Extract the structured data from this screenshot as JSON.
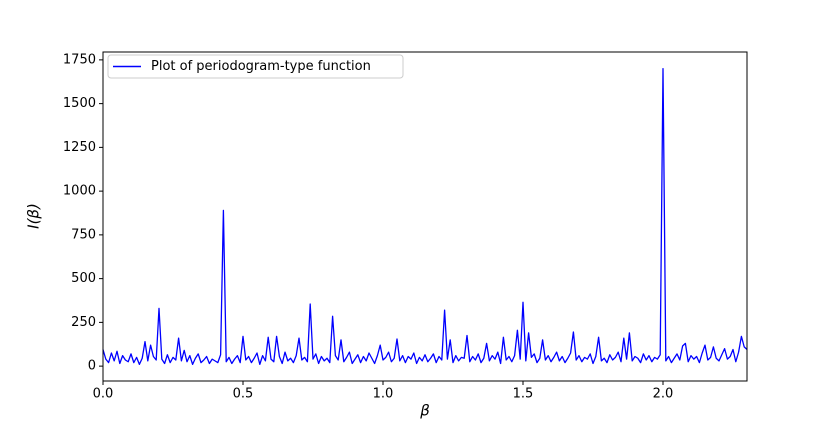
{
  "chart_data": {
    "type": "line",
    "x_label": "β",
    "y_label": "I(β)",
    "legend": "upper left",
    "grid": false,
    "xlim": [
      0,
      2.3
    ],
    "ylim": [
      -85,
      1795
    ],
    "xticks": [
      {
        "value": 0,
        "label": "0.0"
      },
      0.5,
      {
        "value": 1,
        "label": "1.0"
      },
      1.5,
      {
        "value": 2,
        "label": "2.0"
      }
    ],
    "yticks": [
      0,
      250,
      500,
      750,
      1000,
      1250,
      1500,
      1750
    ],
    "x": [
      0,
      0.01,
      0.02,
      0.03,
      0.04,
      0.05,
      0.06,
      0.07,
      0.08,
      0.09,
      0.1,
      0.11,
      0.12,
      0.13,
      0.14,
      0.15,
      0.16,
      0.17,
      0.18,
      0.19,
      0.2,
      0.21,
      0.22,
      0.23,
      0.24,
      0.25,
      0.26,
      0.27,
      0.28,
      0.29,
      0.3,
      0.31,
      0.32,
      0.33,
      0.34,
      0.35,
      0.36,
      0.37,
      0.38,
      0.39,
      0.4,
      0.41,
      0.42,
      0.43,
      0.44,
      0.45,
      0.46,
      0.47,
      0.48,
      0.49,
      0.5,
      0.51,
      0.52,
      0.53,
      0.54,
      0.55,
      0.56,
      0.57,
      0.58,
      0.59,
      0.6,
      0.61,
      0.62,
      0.63,
      0.64,
      0.65,
      0.66,
      0.67,
      0.68,
      0.69,
      0.7,
      0.71,
      0.72,
      0.73,
      0.74,
      0.75,
      0.76,
      0.77,
      0.78,
      0.79,
      0.8,
      0.81,
      0.82,
      0.83,
      0.84,
      0.85,
      0.86,
      0.87,
      0.88,
      0.89,
      0.9,
      0.91,
      0.92,
      0.93,
      0.94,
      0.95,
      0.96,
      0.97,
      0.98,
      0.99,
      1,
      1.01,
      1.02,
      1.03,
      1.04,
      1.05,
      1.06,
      1.07,
      1.08,
      1.09,
      1.1,
      1.11,
      1.12,
      1.13,
      1.14,
      1.15,
      1.16,
      1.17,
      1.18,
      1.19,
      1.2,
      1.21,
      1.22,
      1.23,
      1.24,
      1.25,
      1.26,
      1.27,
      1.28,
      1.29,
      1.3,
      1.31,
      1.32,
      1.33,
      1.34,
      1.35,
      1.36,
      1.37,
      1.38,
      1.39,
      1.4,
      1.41,
      1.42,
      1.43,
      1.44,
      1.45,
      1.46,
      1.47,
      1.48,
      1.49,
      1.5,
      1.51,
      1.52,
      1.53,
      1.54,
      1.55,
      1.56,
      1.57,
      1.58,
      1.59,
      1.6,
      1.61,
      1.62,
      1.63,
      1.64,
      1.65,
      1.66,
      1.67,
      1.68,
      1.69,
      1.7,
      1.71,
      1.72,
      1.73,
      1.74,
      1.75,
      1.76,
      1.77,
      1.78,
      1.79,
      1.8,
      1.81,
      1.82,
      1.83,
      1.84,
      1.85,
      1.86,
      1.87,
      1.88,
      1.89,
      1.9,
      1.91,
      1.92,
      1.93,
      1.94,
      1.95,
      1.96,
      1.97,
      1.98,
      1.99,
      2,
      2.01,
      2.02,
      2.03,
      2.04,
      2.05,
      2.06,
      2.07,
      2.08,
      2.09,
      2.1,
      2.11,
      2.12,
      2.13,
      2.14,
      2.15,
      2.16,
      2.17,
      2.18,
      2.19,
      2.2,
      2.21,
      2.22,
      2.23,
      2.24,
      2.25,
      2.26,
      2.27,
      2.28,
      2.29,
      2.3
    ],
    "series": [
      {
        "name": "Plot of periodogram-type function",
        "color": "#0000ff",
        "values": [
          95,
          40,
          20,
          75,
          30,
          85,
          15,
          60,
          35,
          25,
          70,
          20,
          50,
          10,
          45,
          140,
          30,
          120,
          55,
          35,
          330,
          40,
          15,
          65,
          20,
          50,
          35,
          160,
          30,
          90,
          25,
          60,
          10,
          45,
          70,
          20,
          35,
          55,
          15,
          40,
          30,
          20,
          65,
          890,
          25,
          50,
          15,
          40,
          60,
          20,
          170,
          35,
          55,
          20,
          45,
          75,
          10,
          60,
          30,
          165,
          40,
          25,
          170,
          55,
          15,
          80,
          30,
          45,
          20,
          60,
          160,
          35,
          50,
          25,
          355,
          40,
          70,
          15,
          55,
          30,
          45,
          20,
          285,
          60,
          35,
          150,
          25,
          50,
          80,
          15,
          40,
          65,
          20,
          55,
          30,
          75,
          45,
          15,
          60,
          120,
          35,
          50,
          80,
          25,
          45,
          155,
          30,
          60,
          20,
          55,
          40,
          75,
          15,
          50,
          30,
          65,
          25,
          45,
          70,
          20,
          55,
          35,
          320,
          40,
          150,
          20,
          60,
          30,
          50,
          45,
          175,
          25,
          55,
          35,
          70,
          20,
          45,
          130,
          30,
          60,
          40,
          80,
          15,
          165,
          35,
          55,
          25,
          60,
          205,
          40,
          365,
          30,
          190,
          50,
          70,
          20,
          45,
          150,
          35,
          60,
          25,
          50,
          80,
          30,
          55,
          20,
          45,
          75,
          195,
          35,
          60,
          25,
          50,
          40,
          70,
          15,
          55,
          165,
          30,
          45,
          20,
          65,
          35,
          50,
          80,
          25,
          160,
          40,
          190,
          30,
          55,
          45,
          20,
          70,
          35,
          60,
          25,
          50,
          40,
          65,
          1700,
          30,
          55,
          20,
          45,
          70,
          35,
          115,
          130,
          25,
          60,
          40,
          55,
          20,
          75,
          120,
          35,
          50,
          110,
          45,
          30,
          65,
          100,
          40,
          55,
          95,
          25,
          80,
          170,
          110,
          95
        ]
      }
    ]
  }
}
